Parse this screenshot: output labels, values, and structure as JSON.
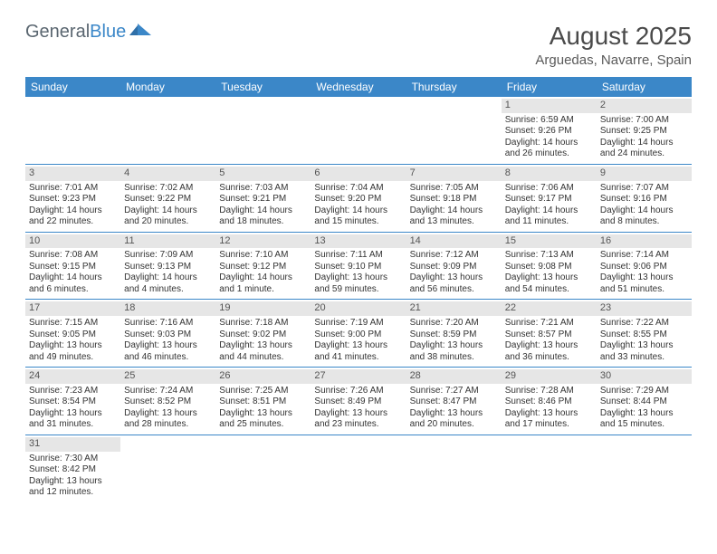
{
  "logo": {
    "text1": "General",
    "text2": "Blue"
  },
  "title": "August 2025",
  "location": "Arguedas, Navarre, Spain",
  "header_bg": "#3b87c8",
  "border_color": "#3b87c8",
  "daynum_bg": "#e6e6e6",
  "weekdays": [
    "Sunday",
    "Monday",
    "Tuesday",
    "Wednesday",
    "Thursday",
    "Friday",
    "Saturday"
  ],
  "weeks": [
    [
      null,
      null,
      null,
      null,
      null,
      {
        "n": "1",
        "sr": "Sunrise: 6:59 AM",
        "ss": "Sunset: 9:26 PM",
        "d1": "Daylight: 14 hours",
        "d2": "and 26 minutes."
      },
      {
        "n": "2",
        "sr": "Sunrise: 7:00 AM",
        "ss": "Sunset: 9:25 PM",
        "d1": "Daylight: 14 hours",
        "d2": "and 24 minutes."
      }
    ],
    [
      {
        "n": "3",
        "sr": "Sunrise: 7:01 AM",
        "ss": "Sunset: 9:23 PM",
        "d1": "Daylight: 14 hours",
        "d2": "and 22 minutes."
      },
      {
        "n": "4",
        "sr": "Sunrise: 7:02 AM",
        "ss": "Sunset: 9:22 PM",
        "d1": "Daylight: 14 hours",
        "d2": "and 20 minutes."
      },
      {
        "n": "5",
        "sr": "Sunrise: 7:03 AM",
        "ss": "Sunset: 9:21 PM",
        "d1": "Daylight: 14 hours",
        "d2": "and 18 minutes."
      },
      {
        "n": "6",
        "sr": "Sunrise: 7:04 AM",
        "ss": "Sunset: 9:20 PM",
        "d1": "Daylight: 14 hours",
        "d2": "and 15 minutes."
      },
      {
        "n": "7",
        "sr": "Sunrise: 7:05 AM",
        "ss": "Sunset: 9:18 PM",
        "d1": "Daylight: 14 hours",
        "d2": "and 13 minutes."
      },
      {
        "n": "8",
        "sr": "Sunrise: 7:06 AM",
        "ss": "Sunset: 9:17 PM",
        "d1": "Daylight: 14 hours",
        "d2": "and 11 minutes."
      },
      {
        "n": "9",
        "sr": "Sunrise: 7:07 AM",
        "ss": "Sunset: 9:16 PM",
        "d1": "Daylight: 14 hours",
        "d2": "and 8 minutes."
      }
    ],
    [
      {
        "n": "10",
        "sr": "Sunrise: 7:08 AM",
        "ss": "Sunset: 9:15 PM",
        "d1": "Daylight: 14 hours",
        "d2": "and 6 minutes."
      },
      {
        "n": "11",
        "sr": "Sunrise: 7:09 AM",
        "ss": "Sunset: 9:13 PM",
        "d1": "Daylight: 14 hours",
        "d2": "and 4 minutes."
      },
      {
        "n": "12",
        "sr": "Sunrise: 7:10 AM",
        "ss": "Sunset: 9:12 PM",
        "d1": "Daylight: 14 hours",
        "d2": "and 1 minute."
      },
      {
        "n": "13",
        "sr": "Sunrise: 7:11 AM",
        "ss": "Sunset: 9:10 PM",
        "d1": "Daylight: 13 hours",
        "d2": "and 59 minutes."
      },
      {
        "n": "14",
        "sr": "Sunrise: 7:12 AM",
        "ss": "Sunset: 9:09 PM",
        "d1": "Daylight: 13 hours",
        "d2": "and 56 minutes."
      },
      {
        "n": "15",
        "sr": "Sunrise: 7:13 AM",
        "ss": "Sunset: 9:08 PM",
        "d1": "Daylight: 13 hours",
        "d2": "and 54 minutes."
      },
      {
        "n": "16",
        "sr": "Sunrise: 7:14 AM",
        "ss": "Sunset: 9:06 PM",
        "d1": "Daylight: 13 hours",
        "d2": "and 51 minutes."
      }
    ],
    [
      {
        "n": "17",
        "sr": "Sunrise: 7:15 AM",
        "ss": "Sunset: 9:05 PM",
        "d1": "Daylight: 13 hours",
        "d2": "and 49 minutes."
      },
      {
        "n": "18",
        "sr": "Sunrise: 7:16 AM",
        "ss": "Sunset: 9:03 PM",
        "d1": "Daylight: 13 hours",
        "d2": "and 46 minutes."
      },
      {
        "n": "19",
        "sr": "Sunrise: 7:18 AM",
        "ss": "Sunset: 9:02 PM",
        "d1": "Daylight: 13 hours",
        "d2": "and 44 minutes."
      },
      {
        "n": "20",
        "sr": "Sunrise: 7:19 AM",
        "ss": "Sunset: 9:00 PM",
        "d1": "Daylight: 13 hours",
        "d2": "and 41 minutes."
      },
      {
        "n": "21",
        "sr": "Sunrise: 7:20 AM",
        "ss": "Sunset: 8:59 PM",
        "d1": "Daylight: 13 hours",
        "d2": "and 38 minutes."
      },
      {
        "n": "22",
        "sr": "Sunrise: 7:21 AM",
        "ss": "Sunset: 8:57 PM",
        "d1": "Daylight: 13 hours",
        "d2": "and 36 minutes."
      },
      {
        "n": "23",
        "sr": "Sunrise: 7:22 AM",
        "ss": "Sunset: 8:55 PM",
        "d1": "Daylight: 13 hours",
        "d2": "and 33 minutes."
      }
    ],
    [
      {
        "n": "24",
        "sr": "Sunrise: 7:23 AM",
        "ss": "Sunset: 8:54 PM",
        "d1": "Daylight: 13 hours",
        "d2": "and 31 minutes."
      },
      {
        "n": "25",
        "sr": "Sunrise: 7:24 AM",
        "ss": "Sunset: 8:52 PM",
        "d1": "Daylight: 13 hours",
        "d2": "and 28 minutes."
      },
      {
        "n": "26",
        "sr": "Sunrise: 7:25 AM",
        "ss": "Sunset: 8:51 PM",
        "d1": "Daylight: 13 hours",
        "d2": "and 25 minutes."
      },
      {
        "n": "27",
        "sr": "Sunrise: 7:26 AM",
        "ss": "Sunset: 8:49 PM",
        "d1": "Daylight: 13 hours",
        "d2": "and 23 minutes."
      },
      {
        "n": "28",
        "sr": "Sunrise: 7:27 AM",
        "ss": "Sunset: 8:47 PM",
        "d1": "Daylight: 13 hours",
        "d2": "and 20 minutes."
      },
      {
        "n": "29",
        "sr": "Sunrise: 7:28 AM",
        "ss": "Sunset: 8:46 PM",
        "d1": "Daylight: 13 hours",
        "d2": "and 17 minutes."
      },
      {
        "n": "30",
        "sr": "Sunrise: 7:29 AM",
        "ss": "Sunset: 8:44 PM",
        "d1": "Daylight: 13 hours",
        "d2": "and 15 minutes."
      }
    ],
    [
      {
        "n": "31",
        "sr": "Sunrise: 7:30 AM",
        "ss": "Sunset: 8:42 PM",
        "d1": "Daylight: 13 hours",
        "d2": "and 12 minutes."
      },
      null,
      null,
      null,
      null,
      null,
      null
    ]
  ]
}
